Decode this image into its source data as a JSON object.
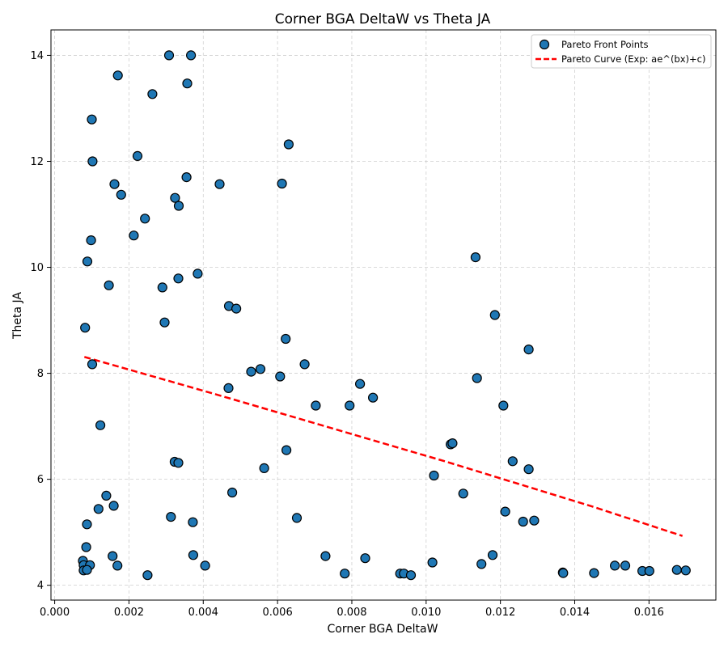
{
  "chart_data": {
    "type": "scatter",
    "title": "Corner BGA DeltaW vs Theta JA",
    "xlabel": "Corner BGA DeltaW",
    "ylabel": "Theta JA",
    "xlim": [
      -0.0001,
      0.0178
    ],
    "ylim": [
      3.72,
      14.48
    ],
    "xticks": [
      0.0,
      0.002,
      0.004,
      0.006,
      0.008,
      0.01,
      0.012,
      0.014,
      0.016
    ],
    "xtick_labels": [
      "0.000",
      "0.002",
      "0.004",
      "0.006",
      "0.008",
      "0.010",
      "0.012",
      "0.014",
      "0.016"
    ],
    "yticks": [
      4,
      6,
      8,
      10,
      12,
      14
    ],
    "ytick_labels": [
      "4",
      "6",
      "8",
      "10",
      "12",
      "14"
    ],
    "grid": true,
    "legend_position": "top-right",
    "series": [
      {
        "name": "Pareto Front Points",
        "kind": "scatter",
        "color": "#1f77b4",
        "edge_color": "#000000",
        "points": [
          [
            0.00308,
            14.0
          ],
          [
            0.00367,
            14.0
          ],
          [
            0.0017,
            13.62
          ],
          [
            0.00357,
            13.47
          ],
          [
            0.00263,
            13.27
          ],
          [
            0.001,
            12.79
          ],
          [
            0.0063,
            12.32
          ],
          [
            0.00223,
            12.1
          ],
          [
            0.00102,
            12.0
          ],
          [
            0.00161,
            11.57
          ],
          [
            0.00355,
            11.7
          ],
          [
            0.00444,
            11.57
          ],
          [
            0.00612,
            11.58
          ],
          [
            0.00179,
            11.37
          ],
          [
            0.00324,
            11.31
          ],
          [
            0.00334,
            11.16
          ],
          [
            0.00243,
            10.92
          ],
          [
            0.00213,
            10.6
          ],
          [
            0.00098,
            10.51
          ],
          [
            0.00088,
            10.11
          ],
          [
            0.01133,
            10.19
          ],
          [
            0.00385,
            9.88
          ],
          [
            0.00333,
            9.79
          ],
          [
            0.00146,
            9.66
          ],
          [
            0.0029,
            9.62
          ],
          [
            0.00469,
            9.27
          ],
          [
            0.00489,
            9.22
          ],
          [
            0.01185,
            9.1
          ],
          [
            0.00296,
            8.96
          ],
          [
            0.00082,
            8.86
          ],
          [
            0.00622,
            8.65
          ],
          [
            0.01276,
            8.45
          ],
          [
            0.00101,
            8.17
          ],
          [
            0.00673,
            8.17
          ],
          [
            0.00529,
            8.03
          ],
          [
            0.00554,
            8.08
          ],
          [
            0.00607,
            7.94
          ],
          [
            0.01137,
            7.91
          ],
          [
            0.00822,
            7.8
          ],
          [
            0.00468,
            7.72
          ],
          [
            0.00857,
            7.54
          ],
          [
            0.00703,
            7.39
          ],
          [
            0.00794,
            7.39
          ],
          [
            0.01208,
            7.39
          ],
          [
            0.00123,
            7.02
          ],
          [
            0.01066,
            6.66
          ],
          [
            0.01071,
            6.68
          ],
          [
            0.00624,
            6.55
          ],
          [
            0.00323,
            6.33
          ],
          [
            0.00333,
            6.31
          ],
          [
            0.01233,
            6.34
          ],
          [
            0.00564,
            6.21
          ],
          [
            0.01276,
            6.19
          ],
          [
            0.01021,
            6.07
          ],
          [
            0.00478,
            5.75
          ],
          [
            0.00139,
            5.69
          ],
          [
            0.011,
            5.73
          ],
          [
            0.00159,
            5.5
          ],
          [
            0.00118,
            5.44
          ],
          [
            0.01213,
            5.39
          ],
          [
            0.00313,
            5.29
          ],
          [
            0.00652,
            5.27
          ],
          [
            0.00372,
            5.19
          ],
          [
            0.01261,
            5.2
          ],
          [
            0.01291,
            5.22
          ],
          [
            0.00087,
            5.15
          ],
          [
            0.00085,
            4.72
          ],
          [
            0.00373,
            4.57
          ],
          [
            0.00156,
            4.55
          ],
          [
            0.00729,
            4.55
          ],
          [
            0.01179,
            4.57
          ],
          [
            0.00836,
            4.51
          ],
          [
            0.00076,
            4.46
          ],
          [
            0.01017,
            4.43
          ],
          [
            0.00078,
            4.38
          ],
          [
            0.00095,
            4.38
          ],
          [
            0.00169,
            4.37
          ],
          [
            0.00405,
            4.37
          ],
          [
            0.01149,
            4.4
          ],
          [
            0.01508,
            4.37
          ],
          [
            0.01536,
            4.37
          ],
          [
            0.00078,
            4.28
          ],
          [
            0.00087,
            4.29
          ],
          [
            0.01675,
            4.29
          ],
          [
            0.01699,
            4.28
          ],
          [
            0.01582,
            4.27
          ],
          [
            0.01601,
            4.27
          ],
          [
            0.00781,
            4.22
          ],
          [
            0.0093,
            4.22
          ],
          [
            0.0094,
            4.22
          ],
          [
            0.01368,
            4.24
          ],
          [
            0.01369,
            4.23
          ],
          [
            0.01452,
            4.23
          ],
          [
            0.0025,
            4.19
          ],
          [
            0.00959,
            4.19
          ]
        ]
      },
      {
        "name": "Pareto Curve (Exp: ae^(bx)+c)",
        "kind": "line",
        "color": "#ff0000",
        "dashed": true,
        "x": [
          0.0008,
          0.0025,
          0.0045,
          0.0065,
          0.0085,
          0.0105,
          0.0125,
          0.0145,
          0.0169
        ],
        "y": [
          8.31,
          7.97,
          7.57,
          7.16,
          6.75,
          6.34,
          5.91,
          5.48,
          4.93
        ]
      }
    ]
  }
}
